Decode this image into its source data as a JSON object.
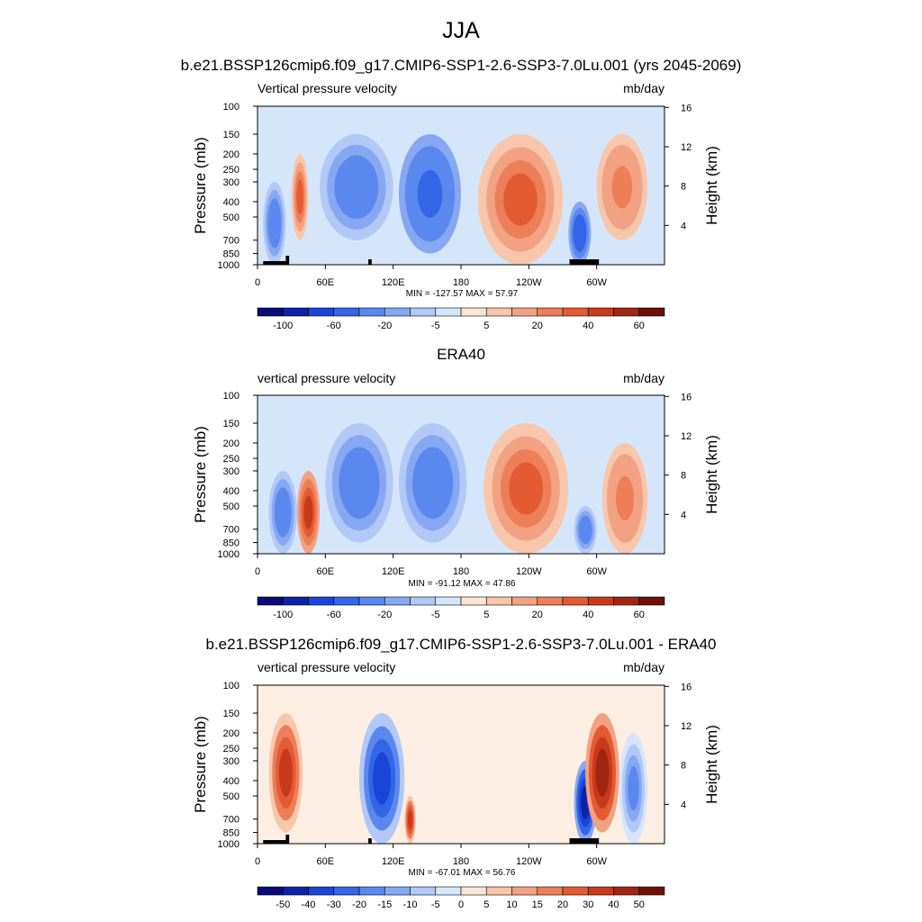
{
  "figure": {
    "season": "JJA",
    "unit_label": "mb/day",
    "y_left_label": "Pressure (mb)",
    "y_right_label": "Height (km)",
    "pressure_ticks": [
      "100",
      "150",
      "200",
      "250",
      "300",
      "400",
      "500",
      "700",
      "850",
      "1000"
    ],
    "height_ticks": [
      "16",
      "12",
      "8",
      "4"
    ],
    "lon_ticks": [
      "0",
      "60E",
      "120E",
      "180",
      "120W",
      "60W"
    ]
  },
  "panels": [
    {
      "title": "b.e21.BSSP126cmip6.f09_g17.CMIP6-SSP1-2.6-SSP3-7.0Lu.001 (yrs 2045-2069)",
      "left_label": "Vertical pressure velocity",
      "stats": "MIN = -127.57  MAX =  57.97",
      "colorbar_labels": [
        "-100",
        "-60",
        "-20",
        "-5",
        "5",
        "20",
        "40",
        "60"
      ]
    },
    {
      "title": "ERA40",
      "left_label": "vertical pressure velocity",
      "stats": "MIN = -91.12  MAX =  47.86",
      "colorbar_labels": [
        "-100",
        "-60",
        "-20",
        "-5",
        "5",
        "20",
        "40",
        "60"
      ]
    },
    {
      "title": "b.e21.BSSP126cmip6.f09_g17.CMIP6-SSP1-2.6-SSP3-7.0Lu.001 - ERA40",
      "left_label": "vertical pressure velocity",
      "stats": "MIN = -67.01  MAX =  56.76",
      "colorbar_labels": [
        "-50",
        "-40",
        "-30",
        "-20",
        "-15",
        "-10",
        "-5",
        "0",
        "5",
        "10",
        "15",
        "20",
        "30",
        "40",
        "50"
      ]
    }
  ],
  "colors": {
    "scale16": [
      "#0a0a78",
      "#0d22a8",
      "#1b44d8",
      "#3366e6",
      "#5a88ee",
      "#86a8f2",
      "#b2c8f6",
      "#d6e6fa",
      "#fde4d4",
      "#f8c6aa",
      "#f2a282",
      "#ec7e58",
      "#e45a32",
      "#c83a1c",
      "#a02612",
      "#700e0a"
    ]
  },
  "chart_data": [
    {
      "type": "heatmap",
      "title": "b.e21.BSSP126cmip6.f09_g17.CMIP6-SSP1-2.6-SSP3-7.0Lu.001 (yrs 2045-2069)",
      "xlabel": "",
      "ylabel": "Pressure (mb)",
      "y2label": "Height (km)",
      "x_range": [
        0,
        360
      ],
      "y_range_mb": [
        1000,
        100
      ],
      "y_scale": "log",
      "levels": [
        -100,
        -80,
        -60,
        -40,
        -20,
        -10,
        -5,
        0,
        5,
        10,
        20,
        30,
        40,
        50,
        60
      ],
      "min": -127.57,
      "max": 57.97,
      "features": [
        {
          "lon": [
            5,
            25
          ],
          "p": [
            300,
            1000
          ],
          "value": -30
        },
        {
          "lon": [
            30,
            45
          ],
          "p": [
            200,
            700
          ],
          "value": 30
        },
        {
          "lon": [
            55,
            120
          ],
          "p": [
            150,
            700
          ],
          "value": -40
        },
        {
          "lon": [
            125,
            180
          ],
          "p": [
            150,
            850
          ],
          "value": -45
        },
        {
          "lon": [
            195,
            270
          ],
          "p": [
            150,
            1000
          ],
          "value": 35
        },
        {
          "lon": [
            275,
            295
          ],
          "p": [
            400,
            1000
          ],
          "value": -60
        },
        {
          "lon": [
            300,
            345
          ],
          "p": [
            150,
            700
          ],
          "value": 20
        }
      ]
    },
    {
      "type": "heatmap",
      "title": "ERA40",
      "xlabel": "",
      "ylabel": "Pressure (mb)",
      "y2label": "Height (km)",
      "x_range": [
        0,
        360
      ],
      "y_range_mb": [
        1000,
        100
      ],
      "y_scale": "log",
      "levels": [
        -100,
        -80,
        -60,
        -40,
        -20,
        -10,
        -5,
        0,
        5,
        10,
        20,
        30,
        40,
        50,
        60
      ],
      "min": -91.12,
      "max": 47.86,
      "features": [
        {
          "lon": [
            10,
            35
          ],
          "p": [
            300,
            1000
          ],
          "value": -30
        },
        {
          "lon": [
            35,
            55
          ],
          "p": [
            300,
            1000
          ],
          "value": 40
        },
        {
          "lon": [
            60,
            120
          ],
          "p": [
            150,
            850
          ],
          "value": -30
        },
        {
          "lon": [
            125,
            185
          ],
          "p": [
            150,
            850
          ],
          "value": -40
        },
        {
          "lon": [
            200,
            275
          ],
          "p": [
            150,
            1000
          ],
          "value": 30
        },
        {
          "lon": [
            280,
            300
          ],
          "p": [
            500,
            1000
          ],
          "value": -40
        },
        {
          "lon": [
            305,
            345
          ],
          "p": [
            200,
            1000
          ],
          "value": 20
        }
      ]
    },
    {
      "type": "heatmap",
      "title": "b.e21.BSSP126cmip6.f09_g17.CMIP6-SSP1-2.6-SSP3-7.0Lu.001 - ERA40",
      "xlabel": "",
      "ylabel": "Pressure (mb)",
      "y2label": "Height (km)",
      "x_range": [
        0,
        360
      ],
      "y_range_mb": [
        1000,
        100
      ],
      "y_scale": "log",
      "levels": [
        -50,
        -40,
        -30,
        -20,
        -15,
        -10,
        -5,
        0,
        5,
        10,
        15,
        20,
        30,
        40,
        50
      ],
      "min": -67.01,
      "max": 56.76,
      "features": [
        {
          "lon": [
            10,
            40
          ],
          "p": [
            150,
            850
          ],
          "value": 35
        },
        {
          "lon": [
            90,
            130
          ],
          "p": [
            150,
            1000
          ],
          "value": -40
        },
        {
          "lon": [
            130,
            140
          ],
          "p": [
            500,
            1000
          ],
          "value": 35
        },
        {
          "lon": [
            280,
            300
          ],
          "p": [
            300,
            1000
          ],
          "value": -50
        },
        {
          "lon": [
            290,
            320
          ],
          "p": [
            150,
            850
          ],
          "value": 40
        },
        {
          "lon": [
            320,
            345
          ],
          "p": [
            200,
            1000
          ],
          "value": -20
        }
      ]
    }
  ]
}
